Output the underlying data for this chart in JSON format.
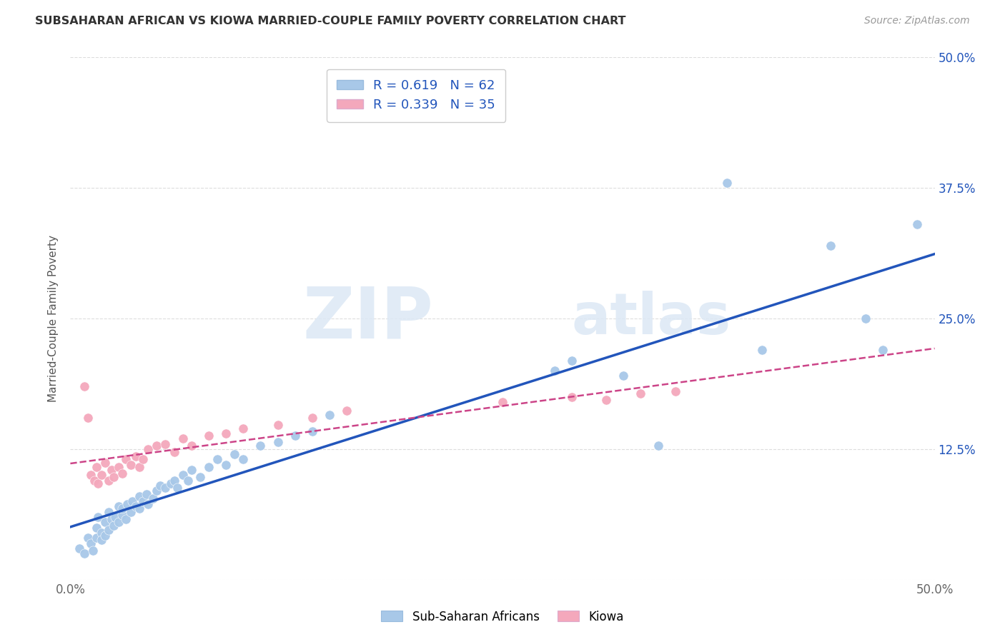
{
  "title": "SUBSAHARAN AFRICAN VS KIOWA MARRIED-COUPLE FAMILY POVERTY CORRELATION CHART",
  "source": "Source: ZipAtlas.com",
  "ylabel": "Married-Couple Family Poverty",
  "xlim": [
    0.0,
    0.5
  ],
  "ylim": [
    0.0,
    0.5
  ],
  "xticks": [
    0.0,
    0.125,
    0.25,
    0.375,
    0.5
  ],
  "yticks": [
    0.0,
    0.125,
    0.25,
    0.375,
    0.5
  ],
  "xticklabels": [
    "0.0%",
    "",
    "",
    "",
    "50.0%"
  ],
  "right_yticklabels": [
    "",
    "12.5%",
    "25.0%",
    "37.5%",
    "50.0%"
  ],
  "legend_labels": [
    "Sub-Saharan Africans",
    "Kiowa"
  ],
  "blue_color": "#a8c8e8",
  "pink_color": "#f4a8bc",
  "blue_line_color": "#2255bb",
  "pink_line_color": "#cc4488",
  "R_blue": 0.619,
  "N_blue": 62,
  "R_pink": 0.339,
  "N_pink": 35,
  "blue_x": [
    0.005,
    0.008,
    0.01,
    0.012,
    0.013,
    0.015,
    0.015,
    0.016,
    0.018,
    0.018,
    0.02,
    0.02,
    0.022,
    0.022,
    0.024,
    0.025,
    0.026,
    0.028,
    0.028,
    0.03,
    0.03,
    0.032,
    0.033,
    0.035,
    0.036,
    0.038,
    0.04,
    0.04,
    0.042,
    0.044,
    0.045,
    0.048,
    0.05,
    0.052,
    0.055,
    0.058,
    0.06,
    0.062,
    0.065,
    0.068,
    0.07,
    0.075,
    0.08,
    0.085,
    0.09,
    0.095,
    0.1,
    0.11,
    0.12,
    0.13,
    0.14,
    0.15,
    0.28,
    0.29,
    0.32,
    0.34,
    0.38,
    0.4,
    0.44,
    0.46,
    0.47,
    0.49
  ],
  "blue_y": [
    0.03,
    0.025,
    0.04,
    0.035,
    0.028,
    0.04,
    0.05,
    0.06,
    0.045,
    0.038,
    0.042,
    0.055,
    0.048,
    0.065,
    0.058,
    0.052,
    0.06,
    0.055,
    0.07,
    0.062,
    0.068,
    0.058,
    0.072,
    0.065,
    0.075,
    0.07,
    0.068,
    0.08,
    0.075,
    0.082,
    0.072,
    0.078,
    0.085,
    0.09,
    0.088,
    0.092,
    0.095,
    0.088,
    0.1,
    0.095,
    0.105,
    0.098,
    0.108,
    0.115,
    0.11,
    0.12,
    0.115,
    0.128,
    0.132,
    0.138,
    0.142,
    0.158,
    0.2,
    0.21,
    0.195,
    0.128,
    0.38,
    0.22,
    0.32,
    0.25,
    0.22,
    0.34
  ],
  "pink_x": [
    0.008,
    0.01,
    0.012,
    0.014,
    0.015,
    0.016,
    0.018,
    0.02,
    0.022,
    0.024,
    0.025,
    0.028,
    0.03,
    0.032,
    0.035,
    0.038,
    0.04,
    0.042,
    0.045,
    0.05,
    0.055,
    0.06,
    0.065,
    0.07,
    0.08,
    0.09,
    0.1,
    0.12,
    0.14,
    0.16,
    0.25,
    0.29,
    0.31,
    0.33,
    0.35
  ],
  "pink_y": [
    0.185,
    0.155,
    0.1,
    0.095,
    0.108,
    0.092,
    0.1,
    0.112,
    0.095,
    0.105,
    0.098,
    0.108,
    0.102,
    0.115,
    0.11,
    0.118,
    0.108,
    0.115,
    0.125,
    0.128,
    0.13,
    0.122,
    0.135,
    0.128,
    0.138,
    0.14,
    0.145,
    0.148,
    0.155,
    0.162,
    0.17,
    0.175,
    0.172,
    0.178,
    0.18
  ],
  "watermark_zip": "ZIP",
  "watermark_atlas": "atlas",
  "background_color": "#ffffff",
  "grid_color": "#dddddd"
}
